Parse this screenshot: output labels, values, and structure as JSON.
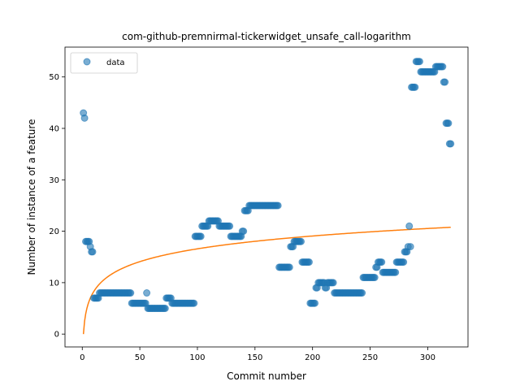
{
  "chart_data": {
    "type": "scatter",
    "title": "com-github-premnirmal-tickerwidget_unsafe_call-logarithm",
    "xlabel": "Commit number",
    "ylabel": "Number of instance of a feature",
    "xlim": [
      -15,
      335
    ],
    "ylim": [
      -2.5,
      55.8
    ],
    "xticks": [
      0,
      50,
      100,
      150,
      200,
      250,
      300
    ],
    "yticks": [
      0,
      10,
      20,
      30,
      40,
      50
    ],
    "legend_position": "upper-left",
    "series": [
      {
        "name": "data",
        "kind": "scatter",
        "color": "#1f77b4",
        "segments": [
          [
            1,
            1,
            43
          ],
          [
            2,
            2,
            42
          ],
          [
            3,
            6,
            18
          ],
          [
            7,
            7,
            17
          ],
          [
            8,
            9,
            16
          ],
          [
            10,
            14,
            7
          ],
          [
            15,
            42,
            8
          ],
          [
            43,
            55,
            6
          ],
          [
            56,
            56,
            8
          ],
          [
            57,
            72,
            5
          ],
          [
            73,
            77,
            7
          ],
          [
            78,
            97,
            6
          ],
          [
            98,
            103,
            19
          ],
          [
            104,
            109,
            21
          ],
          [
            110,
            118,
            22
          ],
          [
            119,
            128,
            21
          ],
          [
            129,
            138,
            19
          ],
          [
            139,
            140,
            20
          ],
          [
            141,
            144,
            24
          ],
          [
            145,
            170,
            25
          ],
          [
            171,
            180,
            13
          ],
          [
            181,
            183,
            17
          ],
          [
            184,
            190,
            18
          ],
          [
            191,
            197,
            14
          ],
          [
            198,
            202,
            6
          ],
          [
            203,
            204,
            9
          ],
          [
            205,
            210,
            10
          ],
          [
            211,
            212,
            9
          ],
          [
            213,
            218,
            10
          ],
          [
            219,
            243,
            8
          ],
          [
            244,
            254,
            11
          ],
          [
            255,
            256,
            13
          ],
          [
            257,
            260,
            14
          ],
          [
            261,
            272,
            12
          ],
          [
            273,
            279,
            14
          ],
          [
            280,
            282,
            16
          ],
          [
            283,
            283,
            17
          ],
          [
            284,
            284,
            21
          ],
          [
            285,
            285,
            17
          ],
          [
            286,
            289,
            48
          ],
          [
            290,
            293,
            53
          ],
          [
            294,
            306,
            51
          ],
          [
            307,
            313,
            52
          ],
          [
            314,
            315,
            49
          ],
          [
            316,
            318,
            41
          ],
          [
            319,
            320,
            37
          ]
        ]
      },
      {
        "name": "",
        "kind": "line",
        "color": "#ff7f0e",
        "model": "a*ln(x)+b",
        "a": 3.6,
        "b": 0.0,
        "x_range": [
          1,
          320
        ]
      }
    ]
  }
}
